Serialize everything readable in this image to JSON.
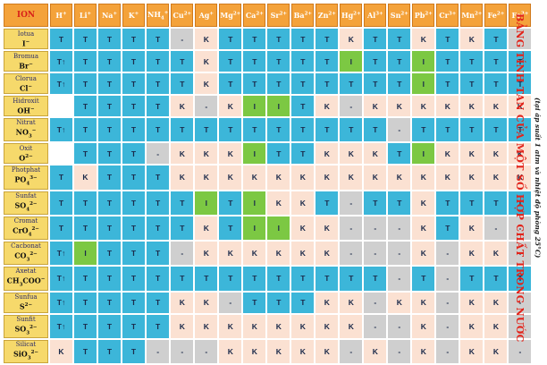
{
  "title": "BẢNG TÍNH TAN CỦA MỘT SỐ HỢP CHẤT TRONG NƯỚC",
  "subtitle": "(tại áp suất 1 atm và nhiệt độ phòng 25°C)",
  "corner_label": "ION",
  "colors": {
    "T": "#3cb6d9",
    "K": "#fbe1d2",
    "I": "#7cc843",
    "-": "#cfcfcf",
    "blank": "#ffffff",
    "header": "#f4a23a",
    "rowlabel": "#f6d96b",
    "title": "#e2231a"
  },
  "cations": [
    {
      "b": "H",
      "s": "+"
    },
    {
      "b": "Li",
      "s": "+"
    },
    {
      "b": "Na",
      "s": "+"
    },
    {
      "b": "K",
      "s": "+"
    },
    {
      "b": "NH",
      "sub": "4",
      "s": "+"
    },
    {
      "b": "Cu",
      "s": "2+"
    },
    {
      "b": "Ag",
      "s": "+"
    },
    {
      "b": "Mg",
      "s": "2+"
    },
    {
      "b": "Ca",
      "s": "2+"
    },
    {
      "b": "Sr",
      "s": "2+"
    },
    {
      "b": "Ba",
      "s": "2+"
    },
    {
      "b": "Zn",
      "s": "2+"
    },
    {
      "b": "Hg",
      "s": "2+"
    },
    {
      "b": "Al",
      "s": "3+"
    },
    {
      "b": "Sn",
      "s": "2+"
    },
    {
      "b": "Pb",
      "s": "2+"
    },
    {
      "b": "Cr",
      "s": "3+"
    },
    {
      "b": "Mn",
      "s": "2+"
    },
    {
      "b": "Fe",
      "s": "2+"
    },
    {
      "b": "Fe",
      "s": "3+"
    }
  ],
  "rows": [
    {
      "name": "Iotua",
      "formula": {
        "b": "I",
        "s": "−"
      },
      "cells": [
        "T",
        "T",
        "T",
        "T",
        "T",
        "-",
        "K",
        "T",
        "T",
        "T",
        "T",
        "T",
        "K",
        "T",
        "T",
        "K",
        "T",
        "K",
        "T",
        "-"
      ]
    },
    {
      "name": "Bromua",
      "formula": {
        "b": "Br",
        "s": "−"
      },
      "cells": [
        "T↑",
        "T",
        "T",
        "T",
        "T",
        "T",
        "K",
        "T",
        "T",
        "T",
        "T",
        "T",
        "I",
        "T",
        "T",
        "I",
        "T",
        "T",
        "T",
        "T"
      ]
    },
    {
      "name": "Clorua",
      "formula": {
        "b": "Cl",
        "s": "−"
      },
      "cells": [
        "T↑",
        "T",
        "T",
        "T",
        "T",
        "T",
        "K",
        "T",
        "T",
        "T",
        "T",
        "T",
        "T",
        "T",
        "T",
        "I",
        "T",
        "T",
        "T",
        "T"
      ]
    },
    {
      "name": "Hidroxit",
      "formula": {
        "b": "OH",
        "s": "−"
      },
      "cells": [
        "",
        "T",
        "T",
        "T",
        "T",
        "K",
        "-",
        "K",
        "I",
        "I",
        "T",
        "K",
        "-",
        "K",
        "K",
        "K",
        "K",
        "K",
        "K",
        "K"
      ]
    },
    {
      "name": "Nitrat",
      "formula": {
        "b": "NO",
        "sub": "3",
        "s": "−"
      },
      "cells": [
        "T↑",
        "T",
        "T",
        "T",
        "T",
        "T",
        "T",
        "T",
        "T",
        "T",
        "T",
        "T",
        "T",
        "T",
        "-",
        "T",
        "T",
        "T",
        "T",
        "T"
      ]
    },
    {
      "name": "Oxit",
      "formula": {
        "b": "O",
        "s": "2−"
      },
      "cells": [
        "",
        "T",
        "T",
        "T",
        "-",
        "K",
        "K",
        "K",
        "I",
        "T",
        "T",
        "K",
        "K",
        "K",
        "T",
        "I",
        "K",
        "K",
        "K",
        "K"
      ]
    },
    {
      "name": "Photphat",
      "formula": {
        "b": "PO",
        "sub": "4",
        "s": "3−"
      },
      "cells": [
        "T",
        "K",
        "T",
        "T",
        "T",
        "K",
        "K",
        "K",
        "K",
        "K",
        "K",
        "K",
        "K",
        "K",
        "K",
        "K",
        "K",
        "K",
        "K",
        "K"
      ]
    },
    {
      "name": "Sunfat",
      "formula": {
        "b": "SO",
        "sub": "4",
        "s": "2−"
      },
      "cells": [
        "T",
        "T",
        "T",
        "T",
        "T",
        "T",
        "I",
        "T",
        "I",
        "K",
        "K",
        "T",
        "-",
        "T",
        "T",
        "K",
        "T",
        "T",
        "T",
        "T"
      ]
    },
    {
      "name": "Cromat",
      "formula": {
        "b": "CrO",
        "sub": "4",
        "s": "2−"
      },
      "cells": [
        "T",
        "T",
        "T",
        "T",
        "T",
        "T",
        "K",
        "T",
        "I",
        "I",
        "K",
        "K",
        "-",
        "-",
        "-",
        "K",
        "T",
        "K",
        "-",
        "-"
      ]
    },
    {
      "name": "Cacbonat",
      "formula": {
        "b": "CO",
        "sub": "3",
        "s": "2−"
      },
      "cells": [
        "T↑",
        "I",
        "T",
        "T",
        "T",
        "-",
        "K",
        "K",
        "K",
        "K",
        "K",
        "K",
        "-",
        "-",
        "-",
        "K",
        "-",
        "K",
        "K",
        "-"
      ]
    },
    {
      "name": "Axetat",
      "formula": {
        "b": "CH",
        "sub": "3",
        "b2": "COO",
        "s": "−"
      },
      "cells": [
        "T↑",
        "T",
        "T",
        "T",
        "T",
        "T",
        "T",
        "T",
        "T",
        "T",
        "T",
        "T",
        "T",
        "T",
        "-",
        "T",
        "-",
        "T",
        "T",
        "T"
      ]
    },
    {
      "name": "Sunfua",
      "formula": {
        "b": "S",
        "s": "2−"
      },
      "cells": [
        "T↑",
        "T",
        "T",
        "T",
        "T",
        "K",
        "K",
        "-",
        "T",
        "T",
        "T",
        "K",
        "K",
        "-",
        "K",
        "K",
        "-",
        "K",
        "K",
        "-"
      ]
    },
    {
      "name": "Sunfit",
      "formula": {
        "b": "SO",
        "sub": "3",
        "s": "2−"
      },
      "cells": [
        "T↑",
        "T",
        "T",
        "T",
        "T",
        "K",
        "K",
        "K",
        "K",
        "K",
        "K",
        "K",
        "K",
        "-",
        "-",
        "K",
        "-",
        "K",
        "K",
        "-"
      ]
    },
    {
      "name": "Silicat",
      "formula": {
        "b": "SiO",
        "sub": "3",
        "s": "2−"
      },
      "cells": [
        "K",
        "T",
        "T",
        "T",
        "-",
        "-",
        "-",
        "K",
        "K",
        "K",
        "K",
        "K",
        "-",
        "K",
        "-",
        "K",
        "-",
        "K",
        "K",
        "-"
      ]
    }
  ]
}
